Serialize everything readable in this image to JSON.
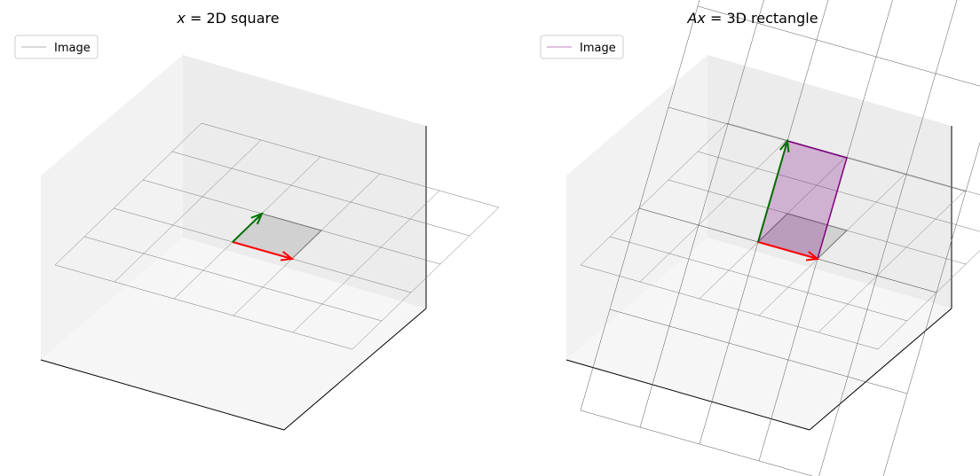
{
  "chart_data": [
    {
      "type": "3d-surface",
      "title_var": "x",
      "title_rest": " = 2D square",
      "legend": [
        {
          "label": "Image",
          "color": "#b0b0b0"
        }
      ],
      "grid_range": [
        -2,
        3
      ],
      "vectors": [
        {
          "name": "e1",
          "color": "#ff0000",
          "from": [
            0,
            0,
            0
          ],
          "to": [
            1,
            0,
            0
          ]
        },
        {
          "name": "e2",
          "color": "#007000",
          "from": [
            0,
            0,
            0
          ],
          "to": [
            0,
            1,
            0
          ]
        }
      ],
      "parallelogram": {
        "color": "#808080",
        "corners": [
          [
            0,
            0,
            0
          ],
          [
            1,
            0,
            0
          ],
          [
            1,
            1,
            0
          ],
          [
            0,
            1,
            0
          ]
        ]
      }
    },
    {
      "type": "3d-surface",
      "title_var": "Ax",
      "title_rest": " = 3D rectangle",
      "legend": [
        {
          "label": "Image",
          "color": "#c080c0"
        }
      ],
      "grid_range": [
        -2,
        3
      ],
      "vectors": [
        {
          "name": "Ae1",
          "color": "#ff0000",
          "from": [
            0,
            0,
            0
          ],
          "to": [
            1,
            0,
            0
          ]
        },
        {
          "name": "Ae2",
          "color": "#007000",
          "from": [
            0,
            0,
            0
          ],
          "to": [
            0,
            1,
            1
          ]
        }
      ],
      "parallelogram": {
        "color": "#800080",
        "corners": [
          [
            0,
            0,
            0
          ],
          [
            1,
            0,
            0
          ],
          [
            1,
            1,
            1
          ],
          [
            0,
            1,
            1
          ]
        ]
      }
    }
  ]
}
